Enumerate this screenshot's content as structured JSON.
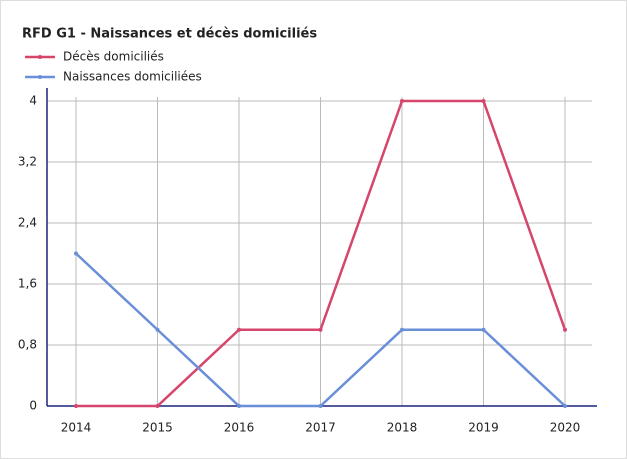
{
  "chart_data": {
    "type": "line",
    "title": "RFD G1 - Naissances et décès domiciliés",
    "categories": [
      "2014",
      "2015",
      "2016",
      "2017",
      "2018",
      "2019",
      "2020"
    ],
    "series": [
      {
        "name": "Décès domiciliés",
        "color": "#d6456b",
        "values": [
          0,
          0,
          1,
          1,
          4,
          4,
          1
        ]
      },
      {
        "name": "Naissances domiciliées",
        "color": "#6a8fd8",
        "values": [
          2,
          1,
          0,
          0,
          1,
          1,
          0
        ]
      }
    ],
    "ylim": [
      0,
      4
    ],
    "yticks": [
      0,
      {
        "value": 0.8,
        "label": "0,8"
      },
      {
        "value": 1.6,
        "label": "1,6"
      },
      {
        "value": 2.4,
        "label": "2,4"
      },
      {
        "value": 3.2,
        "label": "3,2"
      },
      4
    ],
    "grid": true
  }
}
